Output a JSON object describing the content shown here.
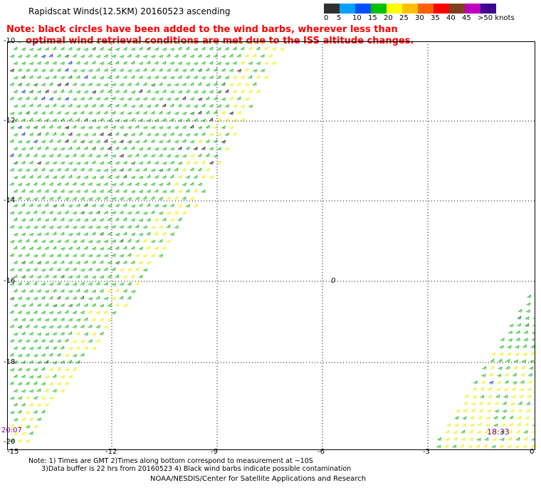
{
  "title": "Rapidscat Winds(12.5KM) 20160523 ascending",
  "note_lines": [
    "Note: black circles have been added to the wind barbs, wherever less than",
    "      optimal wind retrieval conditions are met due to the ISS altitude changes."
  ],
  "scale": {
    "labels": [
      "0",
      "5",
      "10",
      "15",
      "20",
      "25",
      "30",
      "35",
      "40",
      "45",
      ">50 knots"
    ],
    "colors": [
      "#303030",
      "#00a0ff",
      "#0050ff",
      "#00c000",
      "#ffff00",
      "#ffc000",
      "#ff6000",
      "#ff0000",
      "#804020",
      "#c000c0",
      "#400090"
    ]
  },
  "map": {
    "x_ticks": [
      "-15",
      "-12",
      "-9",
      "-6",
      "-3",
      "0"
    ],
    "y_ticks": [
      "-10",
      "-12",
      "-14",
      "-16",
      "-18",
      "-20"
    ],
    "center_marker": "0",
    "time_left": "20:07",
    "time_right": "18:33"
  },
  "footnote_lines": [
    "Note: 1) Times are GMT 2)Times along bottom correspond to measurement at ~10S",
    "      3)Data buffer is 22 hrs from 20160523 4) Black wind barbs indicate possible contamination"
  ],
  "credit": "NOAA/NESDIS/Center for Satellite Applications and Research"
}
